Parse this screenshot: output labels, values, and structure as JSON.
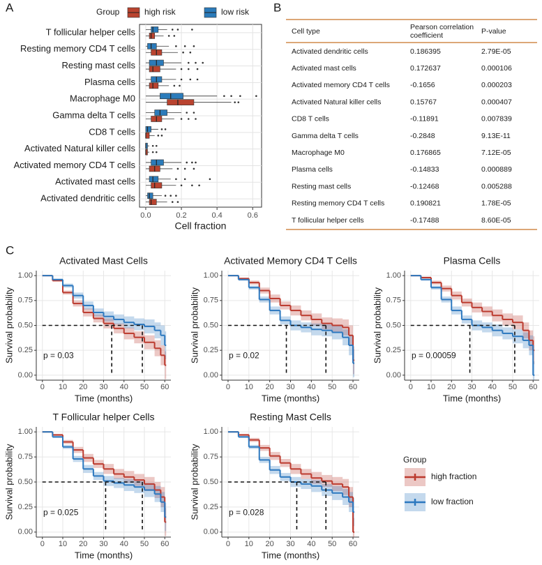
{
  "panel_labels": [
    "A",
    "B",
    "C"
  ],
  "table": {
    "columns": [
      "Cell type",
      "Pearson correlation coefficient",
      "P-value"
    ],
    "rows": [
      [
        "Activated dendritic cells",
        "0.186395",
        "2.79E-05"
      ],
      [
        "Activated mast cells",
        "0.172637",
        "0.000106"
      ],
      [
        "Activated memory CD4 T cells",
        "-0.1656",
        "0.000203"
      ],
      [
        "Activated Natural killer cells",
        "0.15767",
        "0.000407"
      ],
      [
        "CD8 T cells",
        "-0.11891",
        "0.007839"
      ],
      [
        "Gamma delta T cells",
        "-0.2848",
        "9.13E-11"
      ],
      [
        "Macrophage M0",
        "0.176865",
        "7.12E-05"
      ],
      [
        "Plasma cells",
        "-0.14833",
        "0.000889"
      ],
      [
        "Resting mast cells",
        "-0.12468",
        "0.005288"
      ],
      [
        "Resting memory CD4 T cells",
        "0.190821",
        "1.78E-05"
      ],
      [
        "T follicular helper cells",
        "-0.17488",
        "8.60E-05"
      ]
    ]
  },
  "chart_data": [
    {
      "type": "boxplot",
      "xlabel": "Cell fraction",
      "legend_title": "Group",
      "categories": [
        "T follicular helper cells",
        "Resting memory CD4 T cells",
        "Resting mast cells",
        "Plasma cells",
        "Macrophage M0",
        "Gamma delta T cells",
        "CD8 T cells",
        "Activated Natural killer cells",
        "Activated memory CD4 T cells",
        "Activated mast cells",
        "Activated dendritic cells"
      ],
      "xlim": [
        -0.035,
        0.65
      ],
      "xticks": [
        {
          "value": 0,
          "label": "0.0"
        },
        0.2,
        0.4,
        0.6
      ],
      "grid": true,
      "series": [
        {
          "name": "high risk",
          "color": "#b9432f",
          "min": [
            0,
            0,
            0,
            0,
            0,
            0,
            0,
            0,
            0,
            0,
            0
          ],
          "q1": [
            0.02,
            0.03,
            0.02,
            0.02,
            0.12,
            0.03,
            0,
            0,
            0.02,
            0.03,
            0.02
          ],
          "median": [
            0.03,
            0.06,
            0.04,
            0.04,
            0.18,
            0.06,
            0,
            0,
            0.05,
            0.05,
            0.03
          ],
          "q3": [
            0.05,
            0.09,
            0.08,
            0.07,
            0.27,
            0.09,
            0.02,
            0.01,
            0.08,
            0.09,
            0.06
          ],
          "max": [
            0.1,
            0.18,
            0.17,
            0.13,
            0.48,
            0.16,
            0.05,
            0.02,
            0.15,
            0.17,
            0.12
          ],
          "outliers": [
            [
              0.13,
              0.16
            ],
            [
              0.21,
              0.25
            ],
            [
              0.2,
              0.24,
              0.29
            ],
            [
              0.16,
              0.19
            ],
            [
              0.5,
              0.52
            ],
            [
              0.2,
              0.24,
              0.28
            ],
            [
              0.07,
              0.09
            ],
            [
              0.04,
              0.06
            ],
            [
              0.18,
              0.22,
              0.27
            ],
            [
              0.2,
              0.26,
              0.3
            ],
            [
              0.15,
              0.18
            ]
          ]
        },
        {
          "name": "low risk",
          "color": "#2b7bba",
          "min": [
            0,
            0,
            0,
            0,
            0,
            0,
            0,
            0,
            0,
            0,
            0
          ],
          "q1": [
            0.03,
            0.01,
            0.02,
            0.03,
            0.08,
            0.05,
            0,
            0,
            0.03,
            0.02,
            0.01
          ],
          "median": [
            0.04,
            0.03,
            0.06,
            0.06,
            0.14,
            0.08,
            0.01,
            0,
            0.06,
            0.04,
            0.02
          ],
          "q3": [
            0.07,
            0.06,
            0.1,
            0.09,
            0.21,
            0.12,
            0.03,
            0.01,
            0.1,
            0.07,
            0.04
          ],
          "max": [
            0.12,
            0.13,
            0.2,
            0.17,
            0.4,
            0.2,
            0.07,
            0.02,
            0.2,
            0.14,
            0.09
          ],
          "outliers": [
            [
              0.15,
              0.18,
              0.26
            ],
            [
              0.17,
              0.22,
              0.27
            ],
            [
              0.24,
              0.28,
              0.32
            ],
            [
              0.2,
              0.25,
              0.29
            ],
            [
              0.44,
              0.48,
              0.53,
              0.62
            ],
            [
              0.23,
              0.27
            ],
            [
              0.09,
              0.11
            ],
            [
              0.04,
              0.06
            ],
            [
              0.23,
              0.26,
              0.28
            ],
            [
              0.17,
              0.22,
              0.36
            ],
            [
              0.11,
              0.14,
              0.17
            ]
          ]
        }
      ]
    },
    {
      "type": "km",
      "title": "Activated Mast Cells",
      "xlabel": "Time (months)",
      "ylabel": "Survival probability",
      "annotation": "p = 0.03",
      "legend_title": "Group",
      "x": [
        0,
        5,
        10,
        15,
        20,
        25,
        30,
        35,
        40,
        45,
        50,
        55,
        58,
        60
      ],
      "xlim": [
        -3,
        63
      ],
      "ylim": [
        -0.05,
        1.05
      ],
      "xticks": [
        0,
        10,
        20,
        30,
        40,
        50,
        60
      ],
      "yticks": [
        {
          "value": 0,
          "label": "0.00"
        },
        {
          "value": 0.25,
          "label": "0.25"
        },
        {
          "value": 0.5,
          "label": "0.50"
        },
        {
          "value": 0.75,
          "label": "0.75"
        },
        {
          "value": 1,
          "label": "1.00"
        }
      ],
      "median_survival": 0.5,
      "median_times": [
        34,
        49
      ],
      "series": [
        {
          "name": "high fraction",
          "color": "#bb3a2e",
          "values": [
            1,
            0.95,
            0.83,
            0.72,
            0.63,
            0.57,
            0.52,
            0.47,
            0.42,
            0.38,
            0.33,
            0.27,
            0.2,
            0.1
          ],
          "errors": [
            0,
            0.01,
            0.02,
            0.03,
            0.04,
            0.04,
            0.05,
            0.05,
            0.06,
            0.06,
            0.07,
            0.08,
            0.1,
            0.14
          ]
        },
        {
          "name": "low fraction",
          "color": "#2c78bf",
          "values": [
            1,
            0.96,
            0.9,
            0.8,
            0.7,
            0.63,
            0.59,
            0.56,
            0.53,
            0.51,
            0.49,
            0.45,
            0.4,
            0.3
          ],
          "errors": [
            0,
            0.01,
            0.02,
            0.03,
            0.04,
            0.04,
            0.05,
            0.05,
            0.06,
            0.06,
            0.07,
            0.08,
            0.1,
            0.14
          ]
        }
      ]
    },
    {
      "type": "km",
      "title": "Activated Memory CD4 T Cells",
      "xlabel": "Time (months)",
      "ylabel": "Survival probability",
      "annotation": "p = 0.02",
      "x": [
        0,
        5,
        10,
        15,
        20,
        25,
        30,
        35,
        40,
        45,
        50,
        55,
        58,
        60
      ],
      "xlim": [
        -3,
        63
      ],
      "ylim": [
        -0.05,
        1.05
      ],
      "xticks": [
        0,
        10,
        20,
        30,
        40,
        50,
        60
      ],
      "yticks": [
        {
          "value": 0,
          "label": "0.00"
        },
        {
          "value": 0.25,
          "label": "0.25"
        },
        {
          "value": 0.5,
          "label": "0.50"
        },
        {
          "value": 0.75,
          "label": "0.75"
        },
        {
          "value": 1,
          "label": "1.00"
        }
      ],
      "median_survival": 0.5,
      "median_times": [
        28,
        47
      ],
      "series": [
        {
          "name": "high fraction",
          "color": "#bb3a2e",
          "values": [
            1,
            0.97,
            0.93,
            0.85,
            0.77,
            0.7,
            0.65,
            0.6,
            0.56,
            0.52,
            0.5,
            0.48,
            0.4,
            0.15
          ],
          "errors": [
            0,
            0.01,
            0.02,
            0.03,
            0.04,
            0.04,
            0.05,
            0.05,
            0.06,
            0.06,
            0.07,
            0.08,
            0.1,
            0.14
          ]
        },
        {
          "name": "low fraction",
          "color": "#2c78bf",
          "values": [
            1,
            0.96,
            0.88,
            0.76,
            0.65,
            0.55,
            0.5,
            0.48,
            0.46,
            0.45,
            0.43,
            0.38,
            0.3,
            0.12
          ],
          "errors": [
            0,
            0.01,
            0.02,
            0.03,
            0.04,
            0.04,
            0.05,
            0.05,
            0.06,
            0.06,
            0.07,
            0.08,
            0.1,
            0.14
          ]
        }
      ]
    },
    {
      "type": "km",
      "title": "Plasma Cells",
      "xlabel": "Time (months)",
      "ylabel": "Survival probability",
      "annotation": "p = 0.00059",
      "x": [
        0,
        5,
        10,
        15,
        20,
        25,
        30,
        35,
        40,
        45,
        50,
        55,
        58,
        60
      ],
      "xlim": [
        -3,
        63
      ],
      "ylim": [
        -0.05,
        1.05
      ],
      "xticks": [
        0,
        10,
        20,
        30,
        40,
        50,
        60
      ],
      "yticks": [
        {
          "value": 0,
          "label": "0.00"
        },
        {
          "value": 0.25,
          "label": "0.25"
        },
        {
          "value": 0.5,
          "label": "0.50"
        },
        {
          "value": 0.75,
          "label": "0.75"
        },
        {
          "value": 1,
          "label": "1.00"
        }
      ],
      "median_survival": 0.5,
      "median_times": [
        29,
        51
      ],
      "series": [
        {
          "name": "high fraction",
          "color": "#bb3a2e",
          "values": [
            1,
            0.98,
            0.93,
            0.87,
            0.8,
            0.73,
            0.68,
            0.64,
            0.6,
            0.56,
            0.53,
            0.45,
            0.35,
            0.25
          ],
          "errors": [
            0,
            0.01,
            0.02,
            0.03,
            0.04,
            0.04,
            0.05,
            0.05,
            0.06,
            0.06,
            0.07,
            0.08,
            0.1,
            0.14
          ]
        },
        {
          "name": "low fraction",
          "color": "#2c78bf",
          "values": [
            1,
            0.96,
            0.88,
            0.76,
            0.65,
            0.56,
            0.5,
            0.48,
            0.45,
            0.42,
            0.39,
            0.35,
            0.3,
            0
          ],
          "errors": [
            0,
            0.01,
            0.02,
            0.03,
            0.04,
            0.04,
            0.05,
            0.05,
            0.06,
            0.06,
            0.07,
            0.08,
            0.1,
            0.14
          ]
        }
      ]
    },
    {
      "type": "km",
      "title": "T Follicular helper Cells",
      "xlabel": "Time (months)",
      "ylabel": "Survival probability",
      "annotation": "p = 0.025",
      "x": [
        0,
        5,
        10,
        15,
        20,
        25,
        30,
        35,
        40,
        45,
        50,
        55,
        58,
        60
      ],
      "xlim": [
        -3,
        63
      ],
      "ylim": [
        -0.05,
        1.05
      ],
      "xticks": [
        0,
        10,
        20,
        30,
        40,
        50,
        60
      ],
      "yticks": [
        {
          "value": 0,
          "label": "0.00"
        },
        {
          "value": 0.25,
          "label": "0.25"
        },
        {
          "value": 0.5,
          "label": "0.50"
        },
        {
          "value": 0.75,
          "label": "0.75"
        },
        {
          "value": 1,
          "label": "1.00"
        }
      ],
      "median_survival": 0.5,
      "median_times": [
        31,
        49
      ],
      "series": [
        {
          "name": "high fraction",
          "color": "#bb3a2e",
          "values": [
            1,
            0.97,
            0.9,
            0.82,
            0.74,
            0.68,
            0.63,
            0.58,
            0.55,
            0.52,
            0.48,
            0.42,
            0.35,
            0.1
          ],
          "errors": [
            0,
            0.01,
            0.02,
            0.03,
            0.04,
            0.04,
            0.05,
            0.05,
            0.06,
            0.06,
            0.07,
            0.08,
            0.1,
            0.14
          ]
        },
        {
          "name": "low fraction",
          "color": "#2c78bf",
          "values": [
            1,
            0.95,
            0.85,
            0.73,
            0.63,
            0.56,
            0.51,
            0.49,
            0.47,
            0.45,
            0.42,
            0.38,
            0.3,
            0.15
          ],
          "errors": [
            0,
            0.01,
            0.02,
            0.03,
            0.04,
            0.04,
            0.05,
            0.05,
            0.06,
            0.06,
            0.07,
            0.08,
            0.1,
            0.14
          ]
        }
      ]
    },
    {
      "type": "km",
      "title": "Resting Mast Cells",
      "xlabel": "Time (months)",
      "ylabel": "Survival probability",
      "annotation": "p = 0.028",
      "x": [
        0,
        5,
        10,
        15,
        20,
        25,
        30,
        35,
        40,
        45,
        50,
        55,
        58,
        60
      ],
      "xlim": [
        -3,
        63
      ],
      "ylim": [
        -0.05,
        1.05
      ],
      "xticks": [
        0,
        10,
        20,
        30,
        40,
        50,
        60
      ],
      "yticks": [
        {
          "value": 0,
          "label": "0.00"
        },
        {
          "value": 0.25,
          "label": "0.25"
        },
        {
          "value": 0.5,
          "label": "0.50"
        },
        {
          "value": 0.75,
          "label": "0.75"
        },
        {
          "value": 1,
          "label": "1.00"
        }
      ],
      "median_survival": 0.5,
      "median_times": [
        33,
        47
      ],
      "series": [
        {
          "name": "high fraction",
          "color": "#bb3a2e",
          "values": [
            1,
            0.97,
            0.92,
            0.84,
            0.76,
            0.69,
            0.63,
            0.58,
            0.54,
            0.51,
            0.48,
            0.45,
            0.35,
            0
          ],
          "errors": [
            0,
            0.01,
            0.02,
            0.03,
            0.04,
            0.04,
            0.05,
            0.05,
            0.06,
            0.06,
            0.07,
            0.08,
            0.1,
            0.14
          ]
        },
        {
          "name": "low fraction",
          "color": "#2c78bf",
          "values": [
            1,
            0.95,
            0.85,
            0.72,
            0.62,
            0.55,
            0.5,
            0.48,
            0.46,
            0.42,
            0.39,
            0.35,
            0.3,
            0.2
          ],
          "errors": [
            0,
            0.01,
            0.02,
            0.03,
            0.04,
            0.04,
            0.05,
            0.05,
            0.06,
            0.06,
            0.07,
            0.08,
            0.1,
            0.14
          ]
        }
      ]
    }
  ]
}
